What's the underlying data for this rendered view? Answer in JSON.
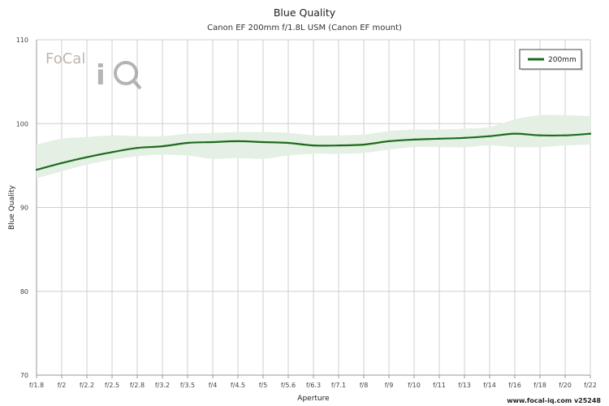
{
  "chart_data": {
    "type": "line",
    "title": "Blue Quality",
    "subtitle": "Canon EF 200mm f/1.8L USM (Canon EF mount)",
    "xlabel": "Aperture",
    "ylabel": "Blue Quality",
    "ylim": [
      70,
      110
    ],
    "y_ticks": [
      "70",
      "80",
      "90",
      "100",
      "110"
    ],
    "categories": [
      "f/1.8",
      "f/2",
      "f/2.2",
      "f/2.5",
      "f/2.8",
      "f/3.2",
      "f/3.5",
      "f/4",
      "f/4.5",
      "f/5",
      "f/5.6",
      "f/6.3",
      "f/7.1",
      "f/8",
      "f/9",
      "f/10",
      "f/11",
      "f/13",
      "f/14",
      "f/16",
      "f/18",
      "f/20",
      "f/22"
    ],
    "grid": true,
    "legend_position": "top-right",
    "series": [
      {
        "name": "200mm",
        "color": "#1e6b1e",
        "values": [
          94.5,
          95.3,
          96.0,
          96.6,
          97.1,
          97.3,
          97.7,
          97.8,
          97.9,
          97.8,
          97.7,
          97.4,
          97.4,
          97.5,
          97.9,
          98.1,
          98.2,
          98.3,
          98.5,
          98.8,
          98.6,
          98.6,
          98.8
        ],
        "band_lower": [
          93.5,
          94.3,
          95.1,
          95.7,
          96.1,
          96.3,
          96.2,
          95.8,
          95.9,
          95.8,
          96.2,
          96.4,
          96.4,
          96.5,
          96.9,
          97.2,
          97.2,
          97.2,
          97.4,
          97.2,
          97.2,
          97.4,
          97.5
        ],
        "band_upper": [
          97.5,
          98.2,
          98.4,
          98.6,
          98.5,
          98.5,
          98.8,
          98.9,
          99.0,
          99.0,
          98.9,
          98.6,
          98.6,
          98.7,
          99.1,
          99.3,
          99.3,
          99.4,
          99.6,
          100.5,
          101.0,
          101.0,
          100.9
        ],
        "band_color": "#e3f0e3"
      }
    ],
    "watermark": {
      "logo_text": "FoCal iQ",
      "url_text": "www.focal-iq.com  v25248"
    }
  }
}
